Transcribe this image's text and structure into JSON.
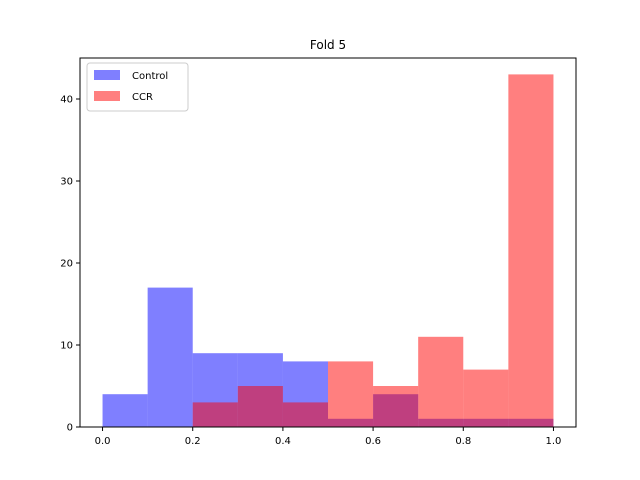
{
  "chart_data": {
    "type": "bar",
    "title": "Fold 5",
    "xlabel": "",
    "ylabel": "",
    "xlim": [
      -0.05,
      1.05
    ],
    "ylim": [
      0,
      45
    ],
    "bin_edges": [
      0.0,
      0.1,
      0.2,
      0.3,
      0.4,
      0.5,
      0.6,
      0.7,
      0.8,
      0.9,
      1.0
    ],
    "x_ticks": [
      0.0,
      0.2,
      0.4,
      0.6,
      0.8,
      1.0
    ],
    "x_tick_labels": [
      "0.0",
      "0.2",
      "0.4",
      "0.6",
      "0.8",
      "1.0"
    ],
    "y_ticks": [
      0,
      10,
      20,
      30,
      40
    ],
    "y_tick_labels": [
      "0",
      "10",
      "20",
      "30",
      "40"
    ],
    "grid": false,
    "legend_position": "top-left",
    "series": [
      {
        "name": "Control",
        "color": "#0000ff",
        "alpha": 0.5,
        "values": [
          4,
          17,
          9,
          9,
          8,
          1,
          4,
          1,
          1,
          1
        ]
      },
      {
        "name": "CCR",
        "color": "#ff0000",
        "alpha": 0.5,
        "values": [
          0,
          0,
          3,
          5,
          3,
          8,
          5,
          11,
          7,
          43
        ]
      }
    ]
  }
}
